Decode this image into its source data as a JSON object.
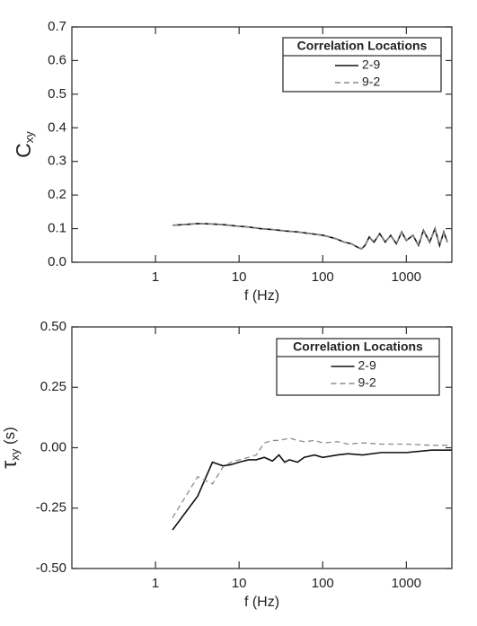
{
  "chart_data": [
    {
      "type": "line",
      "xscale": "log",
      "xlabel": "f (Hz)",
      "ylabel": "C",
      "ylabel_subscript": "xy",
      "xlim": [
        0.1,
        3500
      ],
      "xticks": [
        1,
        10,
        100,
        1000
      ],
      "ylim": [
        0,
        0.7
      ],
      "yticks": [
        {
          "value": 0,
          "label": "0.0"
        },
        0.1,
        0.2,
        0.3,
        0.4,
        0.5,
        0.6,
        0.7
      ],
      "legend": {
        "title": "Correlation Locations",
        "position": "upper right"
      },
      "x": [
        1.6,
        2.2,
        3.2,
        4.5,
        6.4,
        9,
        12.8,
        18,
        25.6,
        36,
        51,
        72,
        102,
        144,
        180,
        220,
        260,
        290,
        320,
        360,
        410,
        480,
        560,
        650,
        760,
        880,
        1000,
        1200,
        1400,
        1600,
        1900,
        2200,
        2500,
        2800,
        3100
      ],
      "series": [
        {
          "name": "2-9",
          "color": "#111111",
          "linestyle": "solid",
          "values": [
            0.11,
            0.112,
            0.115,
            0.114,
            0.112,
            0.108,
            0.105,
            0.1,
            0.097,
            0.093,
            0.09,
            0.085,
            0.08,
            0.07,
            0.06,
            0.055,
            0.045,
            0.04,
            0.05,
            0.075,
            0.06,
            0.085,
            0.06,
            0.08,
            0.055,
            0.09,
            0.065,
            0.08,
            0.05,
            0.095,
            0.06,
            0.1,
            0.05,
            0.09,
            0.06
          ]
        },
        {
          "name": "9-2",
          "color": "#8c8c8c",
          "linestyle": "dashed",
          "values": [
            0.11,
            0.112,
            0.115,
            0.114,
            0.112,
            0.108,
            0.105,
            0.1,
            0.097,
            0.093,
            0.09,
            0.085,
            0.08,
            0.07,
            0.06,
            0.055,
            0.046,
            0.04,
            0.052,
            0.074,
            0.062,
            0.084,
            0.058,
            0.081,
            0.056,
            0.089,
            0.066,
            0.079,
            0.052,
            0.094,
            0.061,
            0.099,
            0.052,
            0.088,
            0.061
          ]
        }
      ]
    },
    {
      "type": "line",
      "xscale": "log",
      "xlabel": "f (Hz)",
      "ylabel": "τ",
      "ylabel_subscript": "xy",
      "ylabel_suffix": " (s)",
      "xlim": [
        0.1,
        3500
      ],
      "xticks": [
        1,
        10,
        100,
        1000
      ],
      "ylim": [
        -0.5,
        0.5
      ],
      "yticks": [
        {
          "value": -0.5,
          "label": "-0.50"
        },
        {
          "value": -0.25,
          "label": "-0.25"
        },
        {
          "value": 0,
          "label": "0.00"
        },
        {
          "value": 0.25,
          "label": "0.25"
        },
        {
          "value": 0.5,
          "label": "0.50"
        }
      ],
      "legend": {
        "title": "Correlation Locations",
        "position": "upper right"
      },
      "x": [
        1.6,
        3.2,
        4.8,
        6.4,
        8,
        10,
        13,
        16,
        20,
        25,
        30,
        35,
        40,
        50,
        60,
        80,
        100,
        150,
        200,
        300,
        500,
        1000,
        2000,
        3500
      ],
      "series": [
        {
          "name": "2-9",
          "color": "#111111",
          "linestyle": "solid",
          "values": [
            -0.34,
            -0.2,
            -0.06,
            -0.075,
            -0.07,
            -0.06,
            -0.05,
            -0.05,
            -0.04,
            -0.055,
            -0.03,
            -0.06,
            -0.05,
            -0.06,
            -0.04,
            -0.03,
            -0.04,
            -0.03,
            -0.025,
            -0.03,
            -0.02,
            -0.02,
            -0.01,
            -0.01
          ]
        },
        {
          "name": "9-2",
          "color": "#8c8c8c",
          "linestyle": "dashed",
          "values": [
            -0.29,
            -0.12,
            -0.15,
            -0.08,
            -0.06,
            -0.05,
            -0.04,
            -0.03,
            0.02,
            0.03,
            0.03,
            0.035,
            0.04,
            0.03,
            0.025,
            0.03,
            0.02,
            0.025,
            0.015,
            0.02,
            0.015,
            0.015,
            0.01,
            0.01
          ]
        }
      ]
    }
  ]
}
